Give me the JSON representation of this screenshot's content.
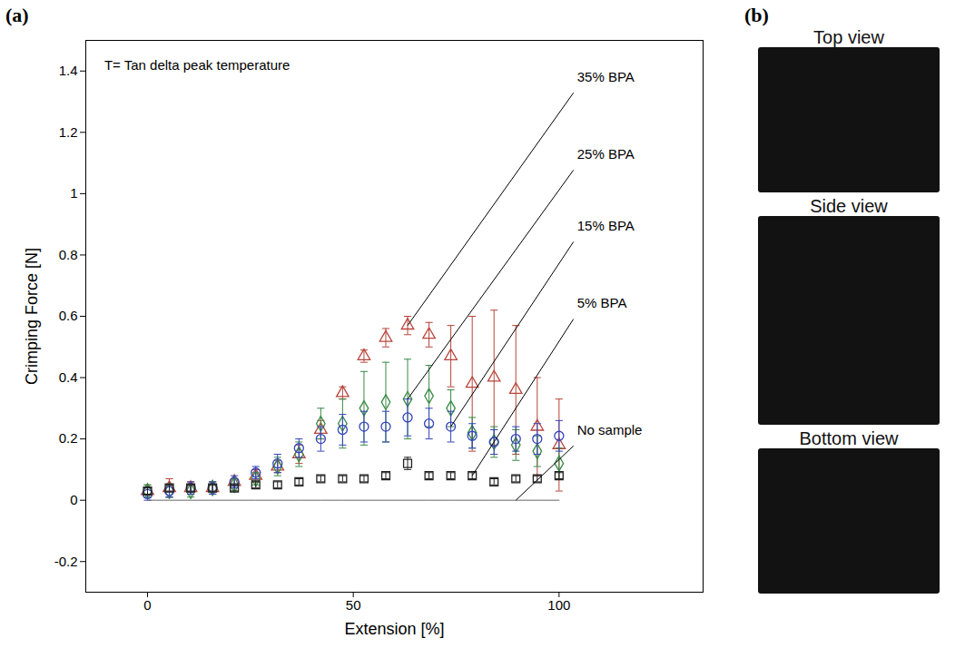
{
  "chart_data": {
    "type": "scatter",
    "panel_label": "(a)",
    "note": "T= Tan delta peak temperature",
    "x_label": "Extension [%]",
    "y_label": "Crimping Force [N]",
    "x": [
      0,
      5.3,
      10.5,
      15.8,
      21.1,
      26.3,
      31.6,
      36.8,
      42.1,
      47.4,
      52.6,
      57.9,
      63.2,
      68.4,
      73.7,
      78.9,
      84.2,
      89.5,
      94.7,
      100
    ],
    "xlim": [
      -15,
      135
    ],
    "xticks": [
      0,
      50,
      100
    ],
    "ylim": [
      -0.3,
      1.5
    ],
    "yticks": [
      -0.2,
      0,
      0.2,
      0.4,
      0.6,
      0.8,
      1,
      1.2,
      1.4
    ],
    "grid": false,
    "series": [
      {
        "name": "35% BPA",
        "type": "scatter",
        "marker": "triangle",
        "color": "#b8443a",
        "values": [
          0.03,
          0.04,
          0.04,
          0.04,
          0.06,
          0.08,
          0.11,
          0.15,
          0.23,
          0.35,
          0.47,
          0.53,
          0.57,
          0.54,
          0.47,
          0.38,
          0.4,
          0.36,
          0.24,
          0.18
        ],
        "errors": [
          0.02,
          0.03,
          0.02,
          0.02,
          0.01,
          0.02,
          0.02,
          0.03,
          0.03,
          0.02,
          0.02,
          0.03,
          0.03,
          0.04,
          0.1,
          0.22,
          0.22,
          0.21,
          0.16,
          0.15
        ]
      },
      {
        "name": "25% BPA",
        "type": "scatter",
        "marker": "diamond",
        "color": "#3a8a45",
        "values": [
          0.03,
          0.03,
          0.03,
          0.04,
          0.05,
          0.07,
          0.11,
          0.15,
          0.25,
          0.25,
          0.3,
          0.32,
          0.33,
          0.34,
          0.3,
          0.22,
          0.19,
          0.18,
          0.16,
          0.12
        ],
        "errors": [
          0.02,
          0.02,
          0.02,
          0.02,
          0.02,
          0.02,
          0.03,
          0.04,
          0.05,
          0.08,
          0.12,
          0.13,
          0.13,
          0.1,
          0.06,
          0.05,
          0.05,
          0.05,
          0.05,
          0.05
        ]
      },
      {
        "name": "15% BPA",
        "type": "scatter",
        "marker": "circle",
        "color": "#3344bb",
        "values": [
          0.02,
          0.03,
          0.04,
          0.04,
          0.06,
          0.09,
          0.12,
          0.17,
          0.2,
          0.23,
          0.24,
          0.24,
          0.27,
          0.25,
          0.24,
          0.21,
          0.19,
          0.2,
          0.2,
          0.21
        ],
        "errors": [
          0.02,
          0.02,
          0.02,
          0.02,
          0.02,
          0.02,
          0.03,
          0.03,
          0.04,
          0.05,
          0.05,
          0.05,
          0.06,
          0.05,
          0.05,
          0.04,
          0.04,
          0.04,
          0.05,
          0.05
        ]
      },
      {
        "name": "5% BPA",
        "type": "scatter",
        "marker": "square",
        "color": "#222222",
        "values": [
          0.03,
          0.04,
          0.04,
          0.04,
          0.04,
          0.05,
          0.05,
          0.06,
          0.07,
          0.07,
          0.07,
          0.08,
          0.12,
          0.08,
          0.08,
          0.08,
          0.06,
          0.07,
          0.07,
          0.08
        ],
        "errors": [
          0.01,
          0.01,
          0.01,
          0.01,
          0.01,
          0.01,
          0.01,
          0.01,
          0.01,
          0.01,
          0.01,
          0.01,
          0.02,
          0.01,
          0.01,
          0.01,
          0.01,
          0.01,
          0.01,
          0.01
        ]
      },
      {
        "name": "No sample",
        "type": "line",
        "line_style": "solid",
        "color": "#555555",
        "values": [
          0,
          0,
          0,
          0,
          0,
          0,
          0,
          0,
          0,
          0,
          0,
          0,
          0,
          0,
          0,
          0,
          0,
          0,
          0,
          0
        ]
      }
    ],
    "annotations": [
      {
        "text": "35% BPA",
        "x": 63.2,
        "y": 0.57
      },
      {
        "text": "25% BPA",
        "x": 63.2,
        "y": 0.33
      },
      {
        "text": "15% BPA",
        "x": 73.7,
        "y": 0.24
      },
      {
        "text": "5% BPA",
        "x": 78.9,
        "y": 0.08
      },
      {
        "text": "No sample",
        "x": 89.5,
        "y": 0
      }
    ]
  },
  "figure": {
    "panel_label": "(b)",
    "views": [
      "Top view",
      "Side view",
      "Bottom view"
    ]
  }
}
